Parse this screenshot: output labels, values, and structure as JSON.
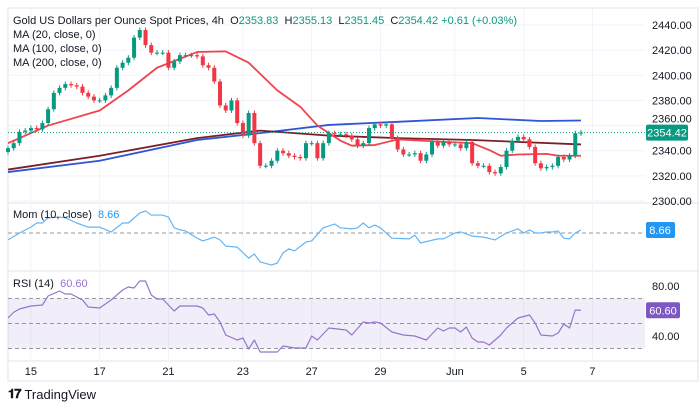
{
  "header": {
    "symbol": "Gold US Dollars per Ounce Spot Prices, 4h",
    "open_label": "O",
    "open": "2353.83",
    "high_label": "H",
    "high": "2355.13",
    "low_label": "L",
    "low": "2351.45",
    "close_label": "C",
    "close": "2354.42",
    "change": "+0.61 (+0.03%)"
  },
  "indicators": {
    "ma20": "MA (20, close, 0)",
    "ma100": "MA (100, close, 0)",
    "ma200": "MA (200, close, 0)",
    "mom_label": "Mom (10, close)",
    "mom_value": "8.66",
    "rsi_label": "RSI (14)",
    "rsi_value": "60.60"
  },
  "branding": "TradingView",
  "colors": {
    "up": "#089981",
    "down": "#f23645",
    "ma20": "#f0434f",
    "ma100": "#7d1e26",
    "ma200": "#2e55d6",
    "mom": "#64b5f6",
    "mom_badge": "#2196f3",
    "rsi": "#9575cd",
    "rsi_badge": "#7e57c2",
    "grid": "#f0f3fa"
  },
  "chart_data": {
    "type": "candlestick",
    "x_ticks": [
      {
        "bar": 4,
        "label": "15"
      },
      {
        "bar": 16,
        "label": "17"
      },
      {
        "bar": 28,
        "label": "21"
      },
      {
        "bar": 41,
        "label": "23"
      },
      {
        "bar": 53,
        "label": "27"
      },
      {
        "bar": 65,
        "label": "29"
      },
      {
        "bar": 78,
        "label": "Jun"
      },
      {
        "bar": 90,
        "label": "5"
      },
      {
        "bar": 102,
        "label": "7"
      }
    ],
    "price_axis": {
      "ticks": [
        "2440.00",
        "2420.00",
        "2400.00",
        "2380.00",
        "2360.00",
        "2340.00",
        "2320.00",
        "2300.00"
      ],
      "range": [
        2300,
        2440
      ],
      "current": "2354.42"
    },
    "close": [
      2342,
      2346,
      2355,
      2356,
      2358,
      2357,
      2362,
      2373,
      2386,
      2390,
      2393,
      2392,
      2391,
      2386,
      2383,
      2380,
      2380,
      2384,
      2390,
      2406,
      2410,
      2414,
      2430,
      2436,
      2424,
      2418,
      2418,
      2418,
      2406,
      2411,
      2416,
      2416,
      2416,
      2415,
      2408,
      2406,
      2395,
      2376,
      2372,
      2380,
      2362,
      2352,
      2370,
      2346,
      2328,
      2328,
      2332,
      2340,
      2338,
      2336,
      2335,
      2334,
      2346,
      2346,
      2334,
      2346,
      2354,
      2353,
      2353,
      2352,
      2349,
      2344,
      2346,
      2358,
      2361,
      2360,
      2361,
      2350,
      2341,
      2337,
      2337,
      2338,
      2332,
      2337,
      2347,
      2344,
      2347,
      2345,
      2345,
      2342,
      2347,
      2330,
      2328,
      2328,
      2323,
      2322,
      2327,
      2340,
      2348,
      2351,
      2349,
      2343,
      2330,
      2326,
      2327,
      2328,
      2335,
      2333,
      2336,
      2353.83,
      2354.42
    ],
    "ma20": [
      [
        0,
        2346
      ],
      [
        7,
        2360
      ],
      [
        16,
        2372
      ],
      [
        21,
        2388
      ],
      [
        26,
        2406
      ],
      [
        33,
        2418.5
      ],
      [
        38,
        2419
      ],
      [
        42,
        2410
      ],
      [
        47,
        2388
      ],
      [
        51,
        2375
      ],
      [
        54,
        2360
      ],
      [
        58,
        2348
      ],
      [
        60,
        2344
      ],
      [
        64,
        2344.5
      ],
      [
        68,
        2349
      ],
      [
        72,
        2348
      ],
      [
        76,
        2347
      ],
      [
        81,
        2346
      ],
      [
        84,
        2340.5
      ],
      [
        86,
        2336
      ],
      [
        89,
        2337
      ],
      [
        94,
        2337.5
      ],
      [
        96,
        2336
      ],
      [
        100,
        2336
      ]
    ],
    "ma100": [
      [
        0,
        2325
      ],
      [
        16,
        2336
      ],
      [
        33,
        2350
      ],
      [
        44,
        2356
      ],
      [
        56,
        2352
      ],
      [
        68,
        2350
      ],
      [
        81,
        2348.5
      ],
      [
        100,
        2345
      ]
    ],
    "ma200": [
      [
        0,
        2323
      ],
      [
        16,
        2332
      ],
      [
        33,
        2348.5
      ],
      [
        44,
        2354
      ],
      [
        56,
        2360.5
      ],
      [
        68,
        2363
      ],
      [
        82,
        2366
      ],
      [
        93,
        2363.6
      ],
      [
        100,
        2364
      ]
    ],
    "momentum": {
      "zero_line": 0,
      "points": [
        [
          0,
          -20
        ],
        [
          2,
          0
        ],
        [
          4,
          17
        ],
        [
          5,
          29
        ],
        [
          6,
          29
        ],
        [
          7,
          44
        ],
        [
          9,
          46
        ],
        [
          10,
          44
        ],
        [
          12,
          29
        ],
        [
          14,
          17
        ],
        [
          16,
          17
        ],
        [
          18,
          3
        ],
        [
          20,
          29
        ],
        [
          21,
          29
        ],
        [
          23,
          58
        ],
        [
          24,
          64
        ],
        [
          25,
          52
        ],
        [
          27,
          52
        ],
        [
          28,
          46
        ],
        [
          29,
          15
        ],
        [
          30,
          9
        ],
        [
          31,
          6
        ],
        [
          33,
          -15
        ],
        [
          34,
          -23
        ],
        [
          36,
          -12
        ],
        [
          37,
          -20
        ],
        [
          38,
          -38
        ],
        [
          40,
          -41
        ],
        [
          42,
          -73
        ],
        [
          43,
          -61
        ],
        [
          44,
          -84
        ],
        [
          46,
          -93
        ],
        [
          47,
          -87
        ],
        [
          48,
          -58
        ],
        [
          49,
          -46
        ],
        [
          50,
          -52
        ],
        [
          52,
          -26
        ],
        [
          53,
          -23
        ],
        [
          55,
          15
        ],
        [
          57,
          26
        ],
        [
          58,
          15
        ],
        [
          60,
          12
        ],
        [
          61,
          15
        ],
        [
          62,
          29
        ],
        [
          63,
          15
        ],
        [
          64,
          23
        ],
        [
          65,
          15
        ],
        [
          67,
          -15
        ],
        [
          70,
          -17
        ],
        [
          71,
          -6
        ],
        [
          72,
          -29
        ],
        [
          75,
          -17
        ],
        [
          76,
          -17
        ],
        [
          78,
          0
        ],
        [
          79,
          3
        ],
        [
          81,
          -9
        ],
        [
          83,
          -12
        ],
        [
          85,
          -20
        ],
        [
          87,
          0
        ],
        [
          89,
          12
        ],
        [
          90,
          0
        ],
        [
          91,
          9
        ],
        [
          92,
          0
        ],
        [
          93,
          0
        ],
        [
          94,
          3
        ],
        [
          95,
          3
        ],
        [
          96,
          6
        ],
        [
          97,
          -15
        ],
        [
          98,
          -17
        ],
        [
          99,
          0
        ],
        [
          100,
          8.66
        ]
      ]
    },
    "rsi": {
      "ticks": [
        "80.00",
        "40.00"
      ],
      "bands": [
        30,
        50,
        70
      ],
      "points": [
        [
          0,
          54.4
        ],
        [
          1,
          59
        ],
        [
          2,
          61.6
        ],
        [
          4,
          64
        ],
        [
          6,
          64.8
        ],
        [
          7,
          72
        ],
        [
          9,
          76
        ],
        [
          10,
          73.6
        ],
        [
          11,
          73.6
        ],
        [
          13,
          68.8
        ],
        [
          14,
          63.2
        ],
        [
          16,
          62.4
        ],
        [
          18,
          68.8
        ],
        [
          20,
          76.8
        ],
        [
          21,
          79.2
        ],
        [
          22,
          78.4
        ],
        [
          23,
          84
        ],
        [
          24,
          84
        ],
        [
          25,
          72.8
        ],
        [
          26,
          69.6
        ],
        [
          27,
          69.6
        ],
        [
          29,
          60
        ],
        [
          30,
          64
        ],
        [
          33,
          64
        ],
        [
          34,
          62.4
        ],
        [
          35,
          56.8
        ],
        [
          36,
          57.6
        ],
        [
          37,
          51.2
        ],
        [
          38,
          40.8
        ],
        [
          40,
          36.8
        ],
        [
          41,
          38.4
        ],
        [
          42,
          29.6
        ],
        [
          43,
          36.8
        ],
        [
          44,
          27.2
        ],
        [
          47,
          27.2
        ],
        [
          48,
          32
        ],
        [
          50,
          30.4
        ],
        [
          52,
          30.4
        ],
        [
          53,
          40
        ],
        [
          54,
          36.8
        ],
        [
          56,
          46.4
        ],
        [
          59,
          44.8
        ],
        [
          60,
          40.8
        ],
        [
          62,
          51.2
        ],
        [
          63,
          50.4
        ],
        [
          64,
          51.2
        ],
        [
          65,
          50.4
        ],
        [
          67,
          43.2
        ],
        [
          69,
          40.8
        ],
        [
          71,
          40
        ],
        [
          72,
          38.4
        ],
        [
          73,
          36.8
        ],
        [
          75,
          46.4
        ],
        [
          76,
          44
        ],
        [
          77,
          46.4
        ],
        [
          78,
          46.4
        ],
        [
          79,
          43.2
        ],
        [
          80,
          47.2
        ],
        [
          81,
          38.4
        ],
        [
          82,
          35.2
        ],
        [
          83,
          35.2
        ],
        [
          84,
          32.8
        ],
        [
          86,
          40.8
        ],
        [
          87,
          46.4
        ],
        [
          89,
          54.4
        ],
        [
          91,
          56.8
        ],
        [
          92,
          50.4
        ],
        [
          93,
          40.8
        ],
        [
          95,
          40
        ],
        [
          96,
          42.4
        ],
        [
          97,
          49.6
        ],
        [
          98,
          46.4
        ],
        [
          99,
          60.8
        ],
        [
          100,
          60.6
        ]
      ]
    }
  }
}
